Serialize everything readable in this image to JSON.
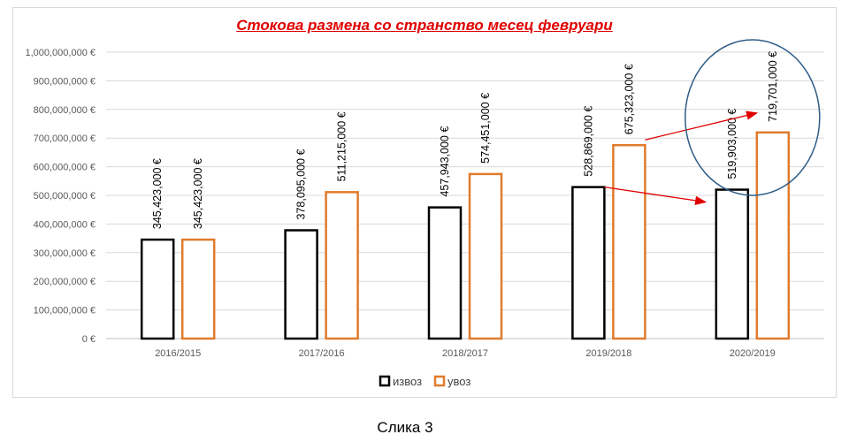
{
  "caption": "Слика 3",
  "chart_data": {
    "type": "bar",
    "title": "Стокова размена со странство месец февруари",
    "categories": [
      "2016/2015",
      "2017/2016",
      "2018/2017",
      "2019/2018",
      "2020/2019"
    ],
    "series": [
      {
        "name": "извоз",
        "color": "#000000",
        "values": [
          345423000,
          378095000,
          457943000,
          528869000,
          519903000
        ],
        "labels": [
          "345,423,000 €",
          "378,095,000 €",
          "457,943,000 €",
          "528,869,000 €",
          "519,903,000 €"
        ]
      },
      {
        "name": "увоз",
        "color": "#e07b2c",
        "values": [
          345423000,
          511215000,
          574451000,
          675323000,
          719701000
        ],
        "labels": [
          "345,423,000 €",
          "511,215,000 €",
          "574,451,000 €",
          "675,323,000 €",
          "719,701,000 €"
        ]
      }
    ],
    "ylim": [
      0,
      1000000000
    ],
    "yticks": [
      "0 €",
      "100,000,000 €",
      "200,000,000 €",
      "300,000,000 €",
      "400,000,000 €",
      "500,000,000 €",
      "600,000,000 €",
      "700,000,000 €",
      "800,000,000 €",
      "900,000,000 €",
      "1,000,000,000 €"
    ],
    "grid": true,
    "legend": "bottom",
    "annotations": [
      {
        "type": "arrow",
        "from": {
          "series": "извоз",
          "category": "2019/2018"
        },
        "to": {
          "series": "извоз",
          "category": "2020/2019"
        },
        "color": "#e00000"
      },
      {
        "type": "arrow",
        "from": {
          "series": "увоз",
          "category": "2019/2018"
        },
        "to": {
          "series": "увоз",
          "category": "2020/2019"
        },
        "color": "#e00000"
      },
      {
        "type": "ellipse",
        "category": "2020/2019",
        "color": "#2e5c87"
      }
    ]
  }
}
